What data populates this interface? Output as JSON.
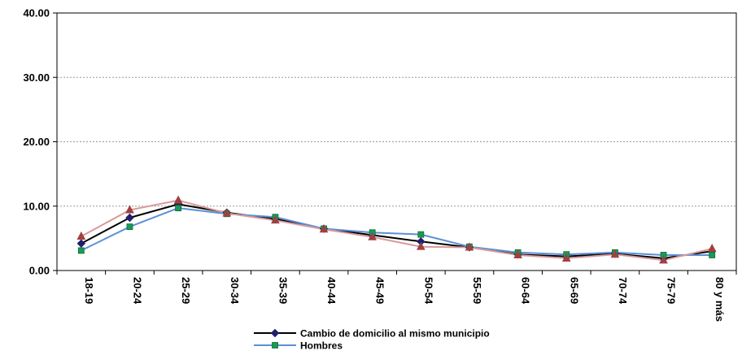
{
  "chart_data": {
    "type": "line",
    "title": "",
    "xlabel": "",
    "ylabel": "",
    "ylim": [
      0,
      40
    ],
    "y_ticks": [
      "0.00",
      "10.00",
      "20.00",
      "30.00",
      "40.00"
    ],
    "categories": [
      "18-19",
      "20-24",
      "25-29",
      "30-34",
      "35-39",
      "40-44",
      "45-49",
      "50-54",
      "55-59",
      "60-64",
      "65-69",
      "70-74",
      "75-79",
      "80 y más"
    ],
    "grid": true,
    "legend_position": "bottom",
    "series": [
      {
        "name": "Cambio de domicilio al mismo municipio",
        "color": "#000000",
        "marker": "diamond",
        "marker_color": "#1f1f6e",
        "values": [
          4.2,
          8.2,
          10.3,
          9.0,
          8.0,
          6.5,
          5.5,
          4.5,
          3.6,
          2.5,
          2.2,
          2.6,
          1.9,
          3.0
        ]
      },
      {
        "name": "Hombres",
        "color": "#5b8fd6",
        "marker": "square",
        "marker_color": "#1a9a55",
        "values": [
          3.1,
          6.8,
          9.7,
          8.8,
          8.3,
          6.5,
          5.9,
          5.6,
          3.7,
          2.8,
          2.5,
          2.8,
          2.4,
          2.4
        ]
      },
      {
        "name": "",
        "color": "#d99a9a",
        "marker": "triangle",
        "marker_color": "#a04040",
        "values": [
          5.3,
          9.4,
          10.9,
          8.9,
          7.8,
          6.4,
          5.2,
          3.7,
          3.6,
          2.4,
          1.9,
          2.5,
          1.6,
          3.4
        ]
      }
    ]
  }
}
